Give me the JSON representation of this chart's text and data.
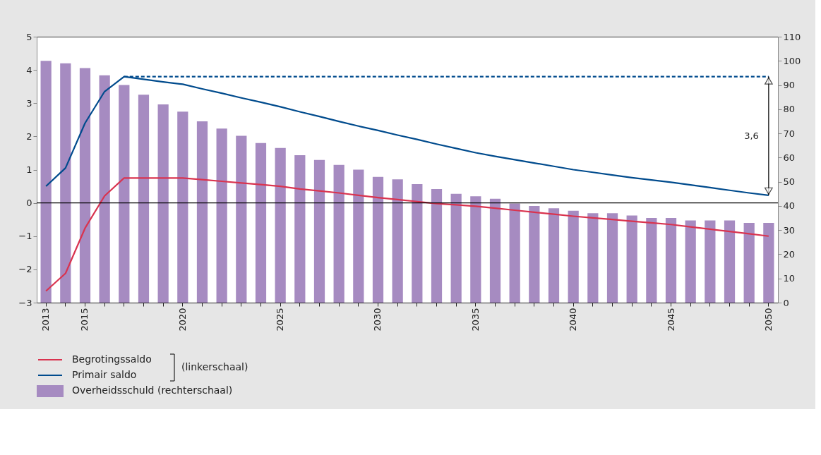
{
  "chart_data": {
    "type": "bar",
    "categories": [
      "2013",
      null,
      "2015",
      null,
      null,
      null,
      null,
      "2020",
      null,
      null,
      null,
      null,
      "2025",
      null,
      null,
      null,
      null,
      "2030",
      null,
      null,
      null,
      null,
      "2035",
      null,
      null,
      null,
      null,
      "2040",
      null,
      null,
      null,
      null,
      "2045",
      null,
      null,
      null,
      null,
      "2050"
    ],
    "series": [
      {
        "name": "Begrotingssaldo",
        "type": "line",
        "color": "#d9334f",
        "values": [
          -2.65,
          -2.12,
          -0.76,
          0.21,
          0.75,
          0.75,
          0.75,
          0.75,
          0.7,
          0.65,
          0.6,
          0.55,
          0.5,
          0.42,
          0.36,
          0.3,
          0.23,
          0.16,
          0.1,
          0.04,
          -0.02,
          -0.06,
          -0.1,
          -0.16,
          -0.22,
          -0.28,
          -0.34,
          -0.4,
          -0.45,
          -0.5,
          -0.55,
          -0.6,
          -0.65,
          -0.72,
          -0.79,
          -0.86,
          -0.93,
          -1.0
        ]
      },
      {
        "name": "Primair saldo",
        "type": "line",
        "color": "#004b8d",
        "values": [
          0.5,
          1.05,
          2.4,
          3.35,
          3.8,
          3.72,
          3.64,
          3.57,
          3.43,
          3.3,
          3.16,
          3.03,
          2.89,
          2.74,
          2.6,
          2.45,
          2.31,
          2.18,
          2.04,
          1.91,
          1.77,
          1.64,
          1.51,
          1.4,
          1.3,
          1.2,
          1.1,
          1.0,
          0.92,
          0.84,
          0.76,
          0.69,
          0.62,
          0.54,
          0.46,
          0.38,
          0.3,
          0.23
        ]
      },
      {
        "name": "Overheidsschuld (rechterschaal)",
        "axis": "y2",
        "color": "#a68bc1",
        "values": [
          100,
          99,
          97,
          94,
          90,
          86,
          82,
          79,
          75,
          72,
          69,
          66,
          64,
          61,
          59,
          57,
          55,
          52,
          51,
          49,
          47,
          45,
          44,
          43,
          41,
          40,
          39,
          38,
          37,
          37,
          36,
          35,
          35,
          34,
          34,
          34,
          33,
          33
        ]
      },
      {
        "type": "line",
        "line_style": "dashed",
        "color": "#004b8d",
        "values": [
          null,
          null,
          null,
          null,
          3.8,
          3.8,
          3.8,
          3.8,
          3.8,
          3.8,
          3.8,
          3.8,
          3.8,
          3.8,
          3.8,
          3.8,
          3.8,
          3.8,
          3.8,
          3.8,
          3.8,
          3.8,
          3.8,
          3.8,
          3.8,
          3.8,
          3.8,
          3.8,
          3.8,
          3.8,
          3.8,
          3.8,
          3.8,
          3.8,
          3.8,
          3.8,
          3.8,
          3.8
        ]
      }
    ],
    "ylim": [
      -3,
      5
    ],
    "yticks": [
      -3,
      -2,
      -1,
      0,
      1,
      2,
      3,
      4,
      5
    ],
    "y2lim": [
      0,
      110
    ],
    "y2ticks": [
      0,
      10,
      20,
      30,
      40,
      50,
      60,
      70,
      80,
      90,
      100,
      110
    ],
    "ref_lines": [
      {
        "axis": "y",
        "value": 0,
        "color": "#000000"
      }
    ],
    "annotations": [
      "3,6",
      "(linkerschaal)"
    ],
    "legend": "bottom",
    "grid": false,
    "marker": "none"
  }
}
